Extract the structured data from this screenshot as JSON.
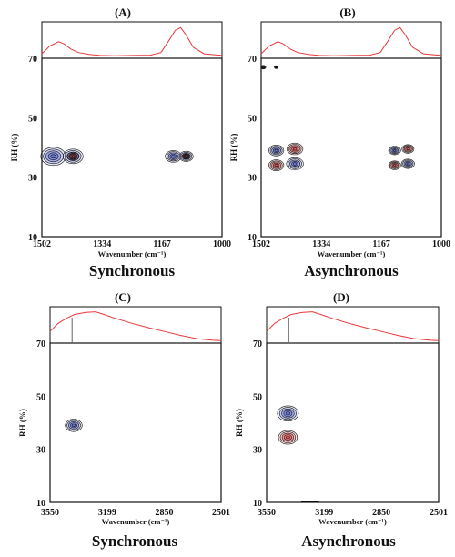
{
  "chart_data": [
    {
      "type": "heatmap",
      "panel": "(A)",
      "caption": "Synchronous",
      "xlabel": "Wavenumber (cm⁻¹)",
      "ylabel": "RH (%)",
      "xlim": [
        1502,
        1000
      ],
      "ylim": [
        10,
        70
      ],
      "xticks": [
        "1502",
        "1334",
        "1167",
        "1000"
      ],
      "yticks": [
        "70",
        "50",
        "30",
        "10"
      ],
      "spectrum": [
        [
          1502,
          0.08
        ],
        [
          1480,
          0.32
        ],
        [
          1455,
          0.45
        ],
        [
          1440,
          0.38
        ],
        [
          1420,
          0.22
        ],
        [
          1400,
          0.12
        ],
        [
          1370,
          0.06
        ],
        [
          1340,
          0.03
        ],
        [
          1300,
          0.02
        ],
        [
          1250,
          0.03
        ],
        [
          1200,
          0.04
        ],
        [
          1170,
          0.12
        ],
        [
          1150,
          0.45
        ],
        [
          1130,
          0.8
        ],
        [
          1115,
          0.88
        ],
        [
          1100,
          0.65
        ],
        [
          1080,
          0.28
        ],
        [
          1050,
          0.08
        ],
        [
          1000,
          0.03
        ]
      ],
      "peaks": [
        {
          "x": 1470,
          "y": 37,
          "sign": "pos",
          "size": 1.25
        },
        {
          "x": 1415,
          "y": 37,
          "sign": "pos",
          "size": 1.0
        },
        {
          "x": 1415,
          "y": 37,
          "sign": "neg",
          "size": 0.55
        },
        {
          "x": 1136,
          "y": 37,
          "sign": "pos",
          "size": 0.8
        },
        {
          "x": 1100,
          "y": 37,
          "sign": "pos",
          "size": 0.7
        },
        {
          "x": 1100,
          "y": 37,
          "sign": "neg",
          "size": 0.4
        }
      ]
    },
    {
      "type": "heatmap",
      "panel": "(B)",
      "caption": "Asynchronous",
      "xlabel": "Wavenumber (cm⁻¹)",
      "ylabel": "RH (%)",
      "xlim": [
        1502,
        1000
      ],
      "ylim": [
        10,
        70
      ],
      "xticks": [
        "1502",
        "1334",
        "1167",
        "1000"
      ],
      "yticks": [
        "70",
        "50",
        "30",
        "10"
      ],
      "spectrum": [
        [
          1502,
          0.08
        ],
        [
          1480,
          0.32
        ],
        [
          1455,
          0.45
        ],
        [
          1440,
          0.38
        ],
        [
          1420,
          0.22
        ],
        [
          1400,
          0.12
        ],
        [
          1370,
          0.06
        ],
        [
          1340,
          0.03
        ],
        [
          1300,
          0.02
        ],
        [
          1250,
          0.03
        ],
        [
          1200,
          0.04
        ],
        [
          1170,
          0.12
        ],
        [
          1150,
          0.45
        ],
        [
          1130,
          0.8
        ],
        [
          1115,
          0.88
        ],
        [
          1100,
          0.65
        ],
        [
          1080,
          0.28
        ],
        [
          1050,
          0.08
        ],
        [
          1000,
          0.03
        ]
      ],
      "peaks": [
        {
          "x": 1460,
          "y": 39,
          "sign": "pos",
          "size": 0.75
        },
        {
          "x": 1460,
          "y": 34,
          "sign": "neg",
          "size": 0.75
        },
        {
          "x": 1408,
          "y": 39.5,
          "sign": "neg",
          "size": 0.8
        },
        {
          "x": 1408,
          "y": 34.5,
          "sign": "pos",
          "size": 0.85
        },
        {
          "x": 1130,
          "y": 39,
          "sign": "pos",
          "size": 0.6
        },
        {
          "x": 1130,
          "y": 34,
          "sign": "neg",
          "size": 0.6
        },
        {
          "x": 1093,
          "y": 39.5,
          "sign": "neg",
          "size": 0.6
        },
        {
          "x": 1093,
          "y": 34.5,
          "sign": "pos",
          "size": 0.65
        },
        {
          "x": 1496,
          "y": 67,
          "sign": "neg",
          "size": 0.25
        },
        {
          "x": 1460,
          "y": 67,
          "sign": "neg",
          "size": 0.2
        }
      ]
    },
    {
      "type": "heatmap",
      "panel": "(C)",
      "caption": "Synchronous",
      "xlabel": "Wavenumber (cm⁻¹)",
      "ylabel": "RH (%)",
      "xlim": [
        3550,
        2501
      ],
      "ylim": [
        10,
        70
      ],
      "xticks": [
        "3550",
        "3199",
        "2850",
        "2501"
      ],
      "yticks": [
        "70",
        "50",
        "30",
        "10"
      ],
      "spectrum": [
        [
          3550,
          0.3
        ],
        [
          3500,
          0.55
        ],
        [
          3450,
          0.7
        ],
        [
          3400,
          0.82
        ],
        [
          3330,
          0.88
        ],
        [
          3270,
          0.9
        ],
        [
          3220,
          0.82
        ],
        [
          3150,
          0.7
        ],
        [
          3050,
          0.55
        ],
        [
          2950,
          0.42
        ],
        [
          2850,
          0.3
        ],
        [
          2750,
          0.18
        ],
        [
          2650,
          0.08
        ],
        [
          2550,
          0.03
        ],
        [
          2501,
          0.02
        ]
      ],
      "marker": 3415,
      "peaks": [
        {
          "x": 3405,
          "y": 39,
          "sign": "pos",
          "size": 0.85
        }
      ]
    },
    {
      "type": "heatmap",
      "panel": "(D)",
      "caption": "Asynchronous",
      "xlabel": "Wavenumber (cm⁻¹)",
      "ylabel": "RH (%)",
      "xlim": [
        3550,
        2501
      ],
      "ylim": [
        10,
        70
      ],
      "xticks": [
        "3550",
        "3199",
        "2850",
        "2501"
      ],
      "yticks": [
        "70",
        "50",
        "30",
        "10"
      ],
      "spectrum": [
        [
          3550,
          0.3
        ],
        [
          3500,
          0.55
        ],
        [
          3450,
          0.7
        ],
        [
          3400,
          0.82
        ],
        [
          3330,
          0.88
        ],
        [
          3270,
          0.9
        ],
        [
          3220,
          0.82
        ],
        [
          3150,
          0.7
        ],
        [
          3050,
          0.55
        ],
        [
          2950,
          0.42
        ],
        [
          2850,
          0.3
        ],
        [
          2750,
          0.18
        ],
        [
          2650,
          0.08
        ],
        [
          2550,
          0.03
        ],
        [
          2501,
          0.02
        ]
      ],
      "marker": 3415,
      "peaks": [
        {
          "x": 3420,
          "y": 43.5,
          "sign": "pos",
          "size": 1.05
        },
        {
          "x": 3420,
          "y": 34.5,
          "sign": "neg",
          "size": 0.95
        }
      ],
      "baseline_mark": {
        "x1": 3340,
        "x2": 3230,
        "y": 10
      }
    }
  ],
  "colors": {
    "spectrum_line": "#e8383a",
    "positive_fill": "#5b6bd6",
    "negative_fill": "#e8474a",
    "contour_line": "#111111"
  }
}
